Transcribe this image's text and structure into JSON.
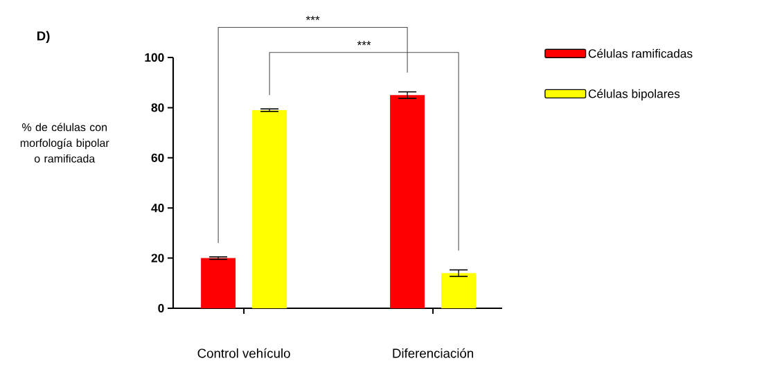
{
  "chart_data": {
    "type": "bar",
    "ylabel": "% de células con morfología bipolar o ramificada",
    "categories": [
      "Control vehículo",
      "Diferenciación"
    ],
    "series": [
      {
        "name": "Células  ramificadas",
        "color": "#ff0000",
        "values": [
          20,
          85
        ],
        "errors": [
          0.5,
          1.3
        ]
      },
      {
        "name": "Células bipolares",
        "color": "#ffff00",
        "values": [
          79,
          14
        ],
        "errors": [
          0.5,
          1.3
        ]
      }
    ],
    "ylim": [
      0,
      100
    ],
    "yticks": [
      0,
      20,
      40,
      60,
      80,
      100
    ],
    "legend": "top right",
    "grid": false,
    "annotations": [
      "D)",
      "***",
      "***"
    ]
  }
}
